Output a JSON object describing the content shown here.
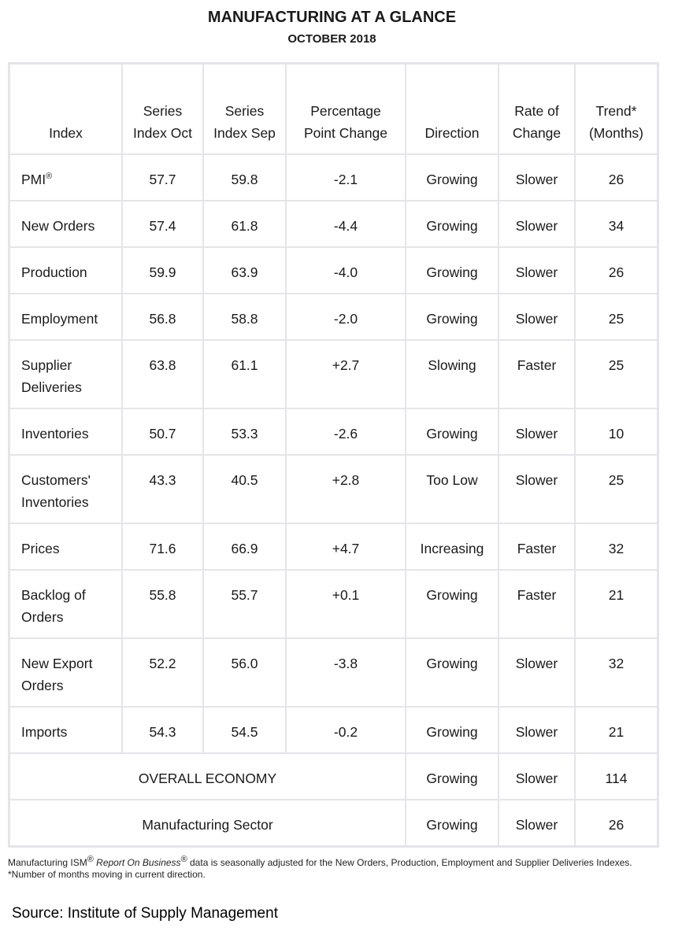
{
  "title": "MANUFACTURING AT A GLANCE",
  "subtitle": "OCTOBER 2018",
  "headers": [
    "Index",
    "Series Index Oct",
    "Series Index Sep",
    "Percentage Point Change",
    "Direction",
    "Rate of Change",
    "Trend* (Months)"
  ],
  "rows": [
    {
      "index": "PMI",
      "sup": "®",
      "oct": "57.7",
      "sep": "59.8",
      "change": "-2.1",
      "direction": "Growing",
      "rate": "Slower",
      "trend": "26"
    },
    {
      "index": "New Orders",
      "oct": "57.4",
      "sep": "61.8",
      "change": "-4.4",
      "direction": "Growing",
      "rate": "Slower",
      "trend": "34"
    },
    {
      "index": "Production",
      "oct": "59.9",
      "sep": "63.9",
      "change": "-4.0",
      "direction": "Growing",
      "rate": "Slower",
      "trend": "26"
    },
    {
      "index": "Employment",
      "oct": "56.8",
      "sep": "58.8",
      "change": "-2.0",
      "direction": "Growing",
      "rate": "Slower",
      "trend": "25"
    },
    {
      "index": "Supplier Deliveries",
      "oct": "63.8",
      "sep": "61.1",
      "change": "+2.7",
      "direction": "Slowing",
      "rate": "Faster",
      "trend": "25"
    },
    {
      "index": "Inventories",
      "oct": "50.7",
      "sep": "53.3",
      "change": "-2.6",
      "direction": "Growing",
      "rate": "Slower",
      "trend": "10"
    },
    {
      "index": "Customers' Inventories",
      "oct": "43.3",
      "sep": "40.5",
      "change": "+2.8",
      "direction": "Too Low",
      "rate": "Slower",
      "trend": "25"
    },
    {
      "index": "Prices",
      "oct": "71.6",
      "sep": "66.9",
      "change": "+4.7",
      "direction": "Increasing",
      "rate": "Faster",
      "trend": "32"
    },
    {
      "index": "Backlog of Orders",
      "oct": "55.8",
      "sep": "55.7",
      "change": "+0.1",
      "direction": "Growing",
      "rate": "Faster",
      "trend": "21"
    },
    {
      "index": "New Export Orders",
      "oct": "52.2",
      "sep": "56.0",
      "change": "-3.8",
      "direction": "Growing",
      "rate": "Slower",
      "trend": "32"
    },
    {
      "index": "Imports",
      "oct": "54.3",
      "sep": "54.5",
      "change": "-0.2",
      "direction": "Growing",
      "rate": "Slower",
      "trend": "21"
    }
  ],
  "summary": [
    {
      "label": "OVERALL ECONOMY",
      "direction": "Growing",
      "rate": "Slower",
      "trend": "114"
    },
    {
      "label": "Manufacturing Sector",
      "direction": "Growing",
      "rate": "Slower",
      "trend": "26"
    }
  ],
  "footnote": {
    "p1": "Manufacturing ISM",
    "sup1": "®",
    "p2": "Report On Business",
    "sup2": "®",
    "p3": " data is seasonally adjusted for the New Orders, Production, Employment and Supplier Deliveries Indexes.",
    "p4": "*Number of months moving in current direction."
  },
  "source": "Source: Institute of Supply Management"
}
